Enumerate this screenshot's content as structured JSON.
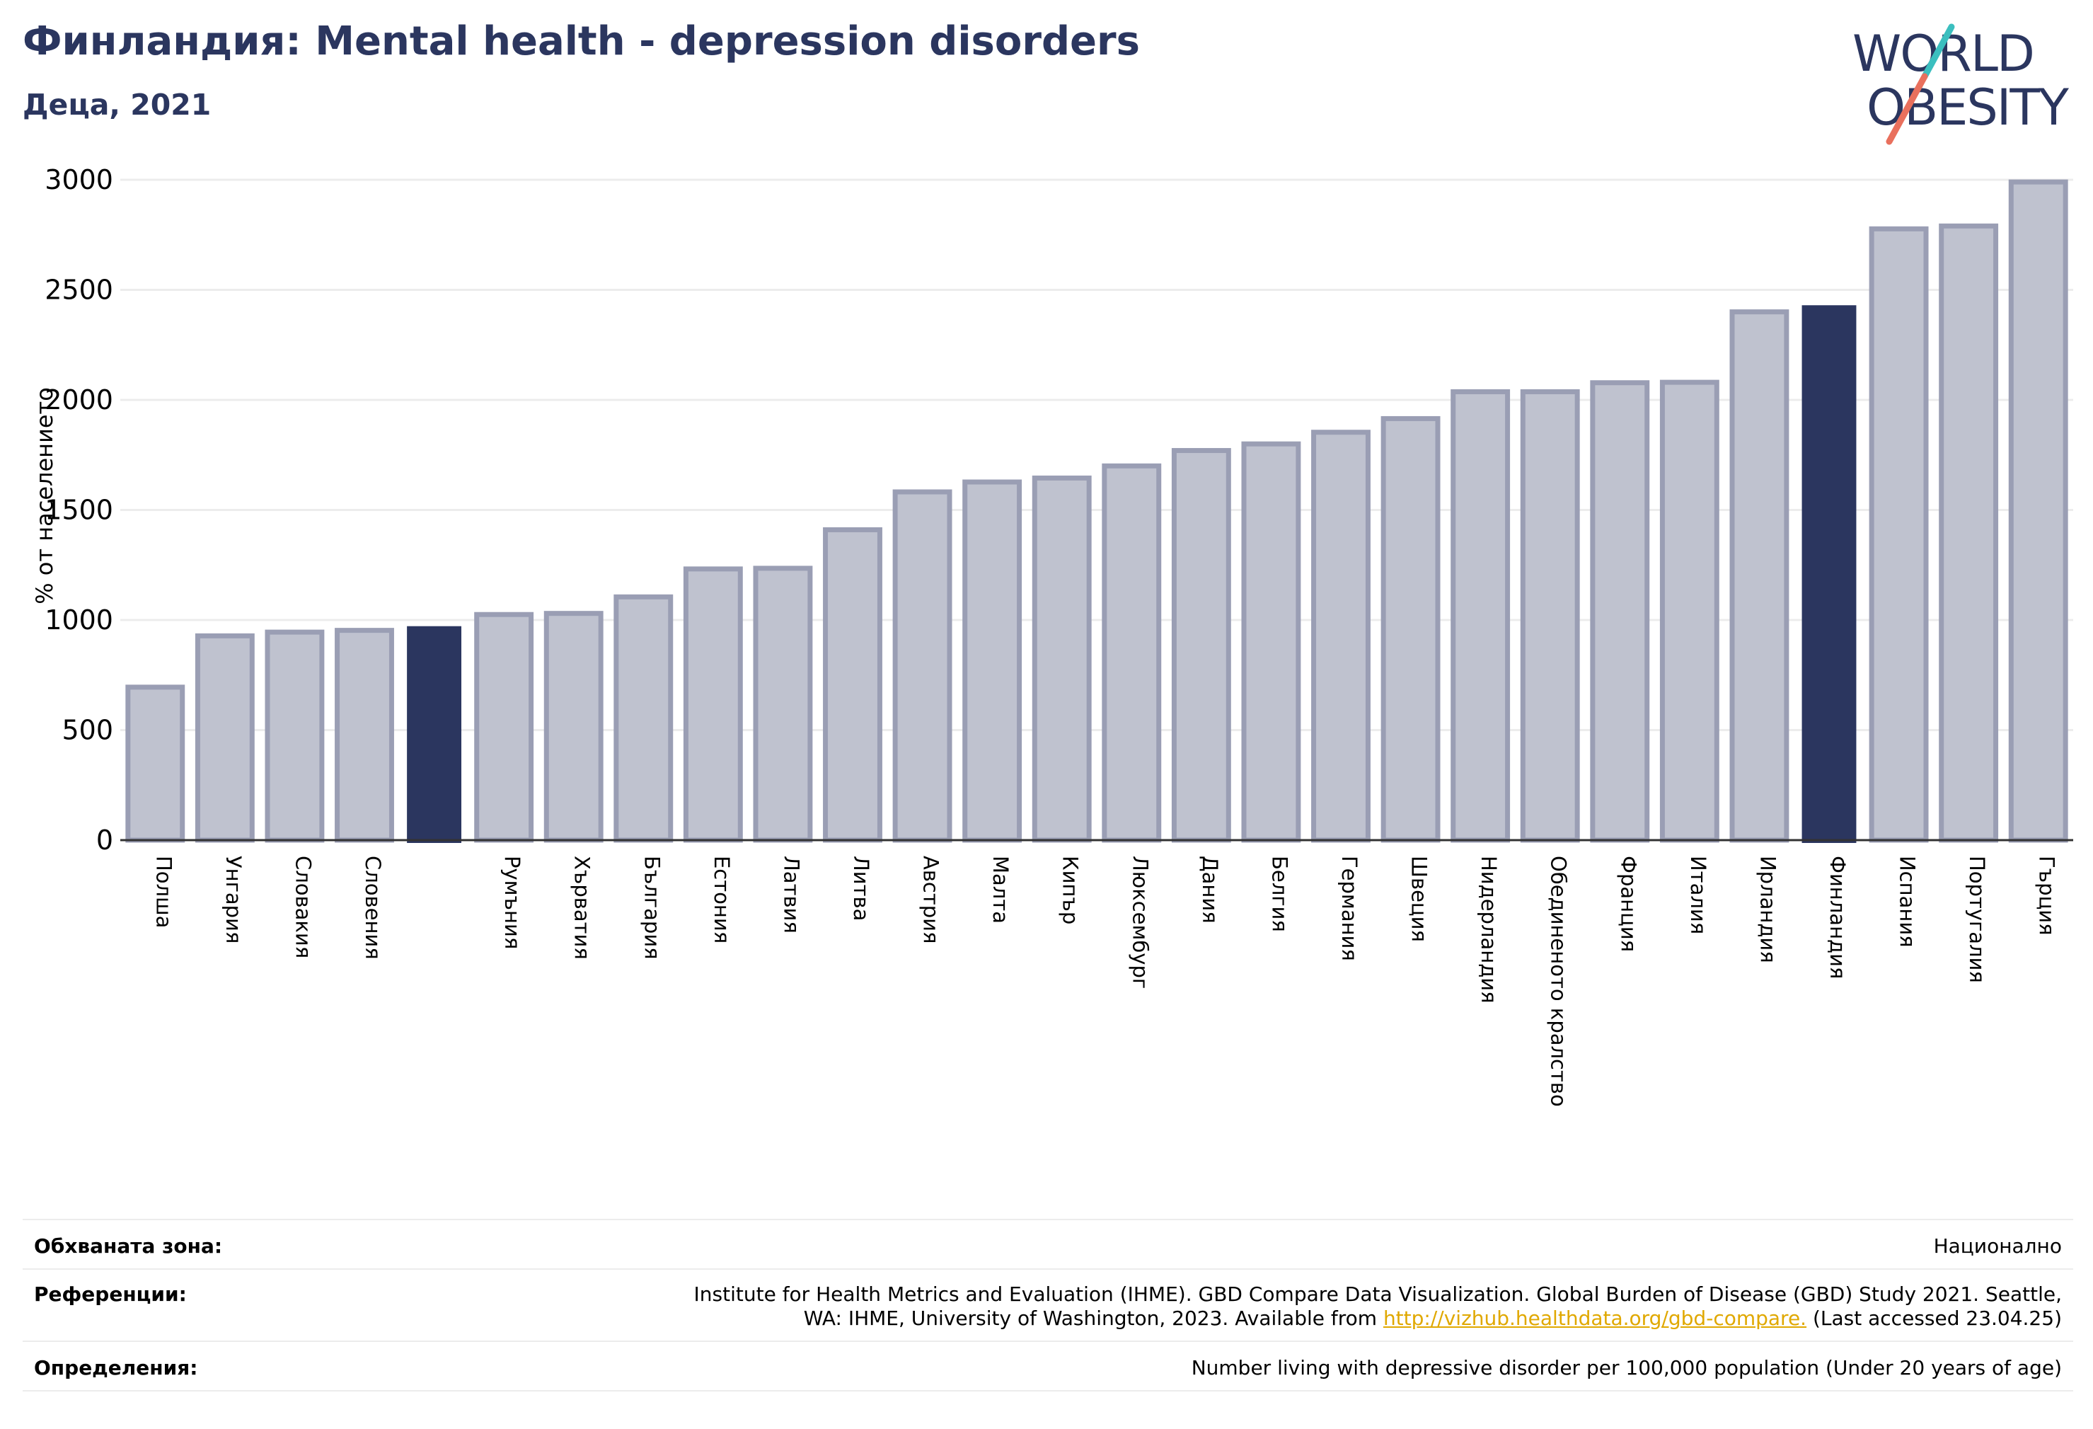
{
  "header": {
    "title": "Финландия: Mental health - depression disorders",
    "subtitle": "Деца, 2021"
  },
  "logo": {
    "line1": "WORLD",
    "line2": "OBESITY",
    "text_color": "#2b365f",
    "accent_teal": "#3bbfbf",
    "accent_red": "#e9705d"
  },
  "colors": {
    "bar_default": "#bfc2cf",
    "bar_border": "#9a9eb4",
    "bar_highlight": "#2b365f",
    "grid": "#ececec",
    "axis": "#333333"
  },
  "chart_data": {
    "type": "bar",
    "ylabel": "% от населението",
    "ylim": [
      0,
      3000
    ],
    "yticks": [
      0,
      500,
      1000,
      1500,
      2000,
      2500,
      3000
    ],
    "grid": true,
    "categories": [
      "Полша",
      "Унгария",
      "Словакия",
      "Словения",
      "",
      "Румъния",
      "Хърватия",
      "България",
      "Естония",
      "Латвия",
      "Литва",
      "Австрия",
      "Малта",
      "Кипър",
      "Люксембург",
      "Дания",
      "Белгия",
      "Германия",
      "Швеция",
      "Нидерландия",
      "Обединеното кралство",
      "Франция",
      "Италия",
      "Ирландия",
      "Финландия",
      "Испания",
      "Португалия",
      "Гърция"
    ],
    "values": [
      695,
      928,
      945,
      953,
      972,
      1025,
      1030,
      1105,
      1232,
      1235,
      1410,
      1582,
      1627,
      1645,
      1700,
      1770,
      1800,
      1853,
      1915,
      2037,
      2037,
      2078,
      2080,
      2400,
      2430,
      2777,
      2790,
      2990
    ],
    "highlighted": [
      4,
      24
    ]
  },
  "footer": {
    "coverage_label": "Обхваната зона:",
    "coverage_value": "Национално",
    "references_label": "Референции:",
    "references_line1": "Institute for Health Metrics and Evaluation (IHME). GBD Compare Data Visualization. Global Burden of Disease (GBD) Study 2021. Seattle,",
    "references_line2_prefix": "WA: IHME, University of Washington, 2023. Available from ",
    "references_link": "http://vizhub.healthdata.org/gbd-compare.",
    "references_line2_suffix": " (Last accessed 23.04.25)",
    "definitions_label": "Определения:",
    "definitions_value": "Number living with depressive disorder per 100,000 population (Under 20 years of age)"
  }
}
